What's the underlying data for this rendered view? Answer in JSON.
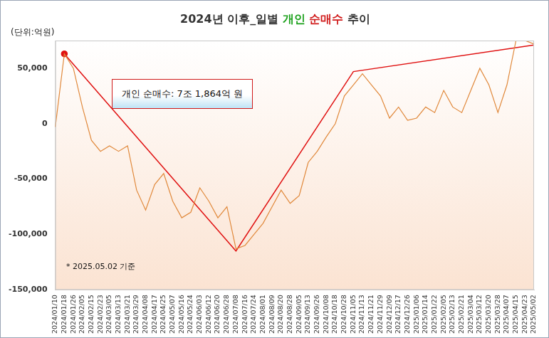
{
  "chart_data": {
    "type": "line",
    "title": [
      {
        "text": "2024년 이후_일별 ",
        "color": "#333333"
      },
      {
        "text": "개인",
        "color": "#1aa01a"
      },
      {
        "text": " ",
        "color": "#333333"
      },
      {
        "text": "순매수",
        "color": "#d01818"
      },
      {
        "text": " 추이",
        "color": "#333333"
      }
    ],
    "unit_label": "(단위:억원)",
    "annotations": [
      {
        "text": "개인 순매수: 7조 1,864억 원"
      },
      {
        "text": "* 2025.05.02 기준"
      }
    ],
    "categories": [
      "2024/01/10",
      "2024/01/18",
      "2024/01/26",
      "2024/02/05",
      "2024/02/15",
      "2024/02/23",
      "2024/03/05",
      "2024/03/13",
      "2024/03/21",
      "2024/03/29",
      "2024/04/08",
      "2024/04/17",
      "2024/04/25",
      "2024/05/07",
      "2024/05/16",
      "2024/05/24",
      "2024/06/03",
      "2024/06/12",
      "2024/06/20",
      "2024/06/28",
      "2024/07/08",
      "2024/07/16",
      "2024/07/24",
      "2024/08/01",
      "2024/08/09",
      "2024/08/20",
      "2024/08/28",
      "2024/09/05",
      "2024/09/13",
      "2024/09/26",
      "2024/10/08",
      "2024/10/18",
      "2024/10/28",
      "2024/11/05",
      "2024/11/13",
      "2024/11/21",
      "2024/11/29",
      "2024/12/09",
      "2024/12/17",
      "2024/12/26",
      "2025/01/06",
      "2025/01/14",
      "2025/01/22",
      "2025/02/05",
      "2025/02/13",
      "2025/02/21",
      "2025/03/04",
      "2025/03/12",
      "2025/03/20",
      "2025/03/28",
      "2025/04/07",
      "2025/04/15",
      "2025/04/23",
      "2025/05/02"
    ],
    "series": [
      {
        "color": "#e0883a",
        "line_style": "solid",
        "marker": "none",
        "values": [
          -3000,
          63000,
          50000,
          15000,
          -15000,
          -25000,
          -20000,
          -25000,
          -20000,
          -60000,
          -78000,
          -55000,
          -45000,
          -70000,
          -85000,
          -80000,
          -58000,
          -70000,
          -85000,
          -75000,
          -113000,
          -110000,
          -100000,
          -90000,
          -75000,
          -60000,
          -72000,
          -65000,
          -35000,
          -25000,
          -12000,
          0,
          25000,
          35000,
          45000,
          35000,
          25000,
          5000,
          15000,
          3000,
          5000,
          15000,
          10000,
          30000,
          15000,
          10000,
          30000,
          50000,
          35000,
          10000,
          35000,
          75000,
          75000,
          71864
        ]
      },
      {
        "color": "#e01010",
        "line_style": "solid",
        "marker": "circle",
        "values": [
          null,
          63000,
          null,
          null,
          null,
          null,
          null,
          null,
          null,
          null,
          null,
          null,
          null,
          null,
          null,
          null,
          null,
          null,
          null,
          null,
          -115000,
          null,
          null,
          null,
          null,
          null,
          null,
          null,
          null,
          null,
          null,
          null,
          null,
          47000,
          null,
          null,
          null,
          null,
          null,
          null,
          null,
          null,
          null,
          null,
          null,
          null,
          null,
          null,
          null,
          null,
          null,
          null,
          null,
          71000
        ]
      }
    ],
    "ylim": [
      -150000,
      75000
    ],
    "yticks": [
      {
        "value": -150000,
        "label": "-150,000"
      },
      {
        "value": -100000,
        "label": "-100,000"
      },
      {
        "value": -50000,
        "label": "-50,000"
      },
      0,
      {
        "value": 50000,
        "label": "50,000"
      }
    ],
    "grid": false,
    "tick_labels": true
  }
}
